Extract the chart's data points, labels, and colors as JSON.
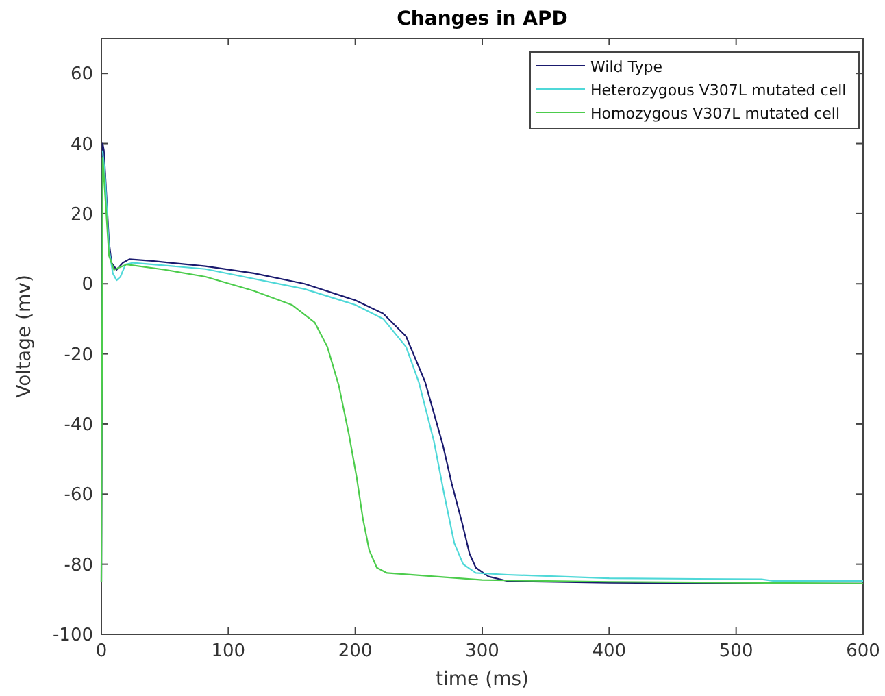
{
  "chart_data": {
    "type": "line",
    "title": "Changes in APD",
    "xlabel": "time (ms)",
    "ylabel": "Voltage (mv)",
    "xlim": [
      0,
      600
    ],
    "xticks": [
      0,
      100,
      200,
      300,
      400,
      500,
      600
    ],
    "ylim": [
      -100,
      70
    ],
    "yticks": [
      -100,
      -80,
      -60,
      -40,
      -20,
      0,
      20,
      40,
      60
    ],
    "grid": false,
    "legend": "top right",
    "marker": "none",
    "line_style": "solid",
    "series": [
      {
        "name": "Wild Type",
        "color": "#1a1a6e",
        "x": [
          0,
          1,
          2,
          4,
          6,
          8,
          12,
          17,
          22,
          40,
          82,
          120,
          160,
          200,
          222,
          240,
          255,
          262,
          269,
          276,
          284,
          290,
          295,
          305,
          320,
          400,
          500,
          600
        ],
        "values": [
          -85,
          40,
          38,
          25,
          12,
          6,
          4,
          6,
          7,
          6.5,
          5,
          3,
          0,
          -4.7,
          -8.5,
          -15,
          -28,
          -37,
          -46,
          -57,
          -68,
          -77,
          -81,
          -83.5,
          -84.8,
          -85.3,
          -85.5,
          -85.5
        ]
      },
      {
        "name": "Heterozygous V307L mutated cell",
        "color": "#4fd8d8",
        "x": [
          1,
          3,
          6,
          9,
          12,
          15,
          19,
          25,
          82,
          160,
          200,
          222,
          240,
          250,
          262,
          270,
          278,
          285,
          295,
          320,
          400,
          520,
          530,
          600
        ],
        "values": [
          38,
          30,
          10,
          3,
          1,
          2,
          5.5,
          6,
          4.2,
          -1.5,
          -6,
          -10,
          -18,
          -28,
          -45,
          -60,
          -74,
          -80,
          -82.5,
          -83,
          -84,
          -84.3,
          -84.8,
          -84.8
        ]
      },
      {
        "name": "Homozygous V307L mutated cell",
        "color": "#4ccc4c",
        "x": [
          0,
          1,
          3,
          6,
          10,
          20,
          50,
          82,
          120,
          150,
          168,
          178,
          187,
          195,
          201,
          206,
          211,
          217,
          225,
          300,
          400,
          600
        ],
        "values": [
          -85,
          36,
          25,
          8,
          4,
          5.5,
          4,
          2,
          -2,
          -6,
          -11,
          -18,
          -29,
          -43,
          -55,
          -67,
          -76,
          -81,
          -82.5,
          -84.5,
          -85,
          -85.5
        ]
      }
    ]
  }
}
